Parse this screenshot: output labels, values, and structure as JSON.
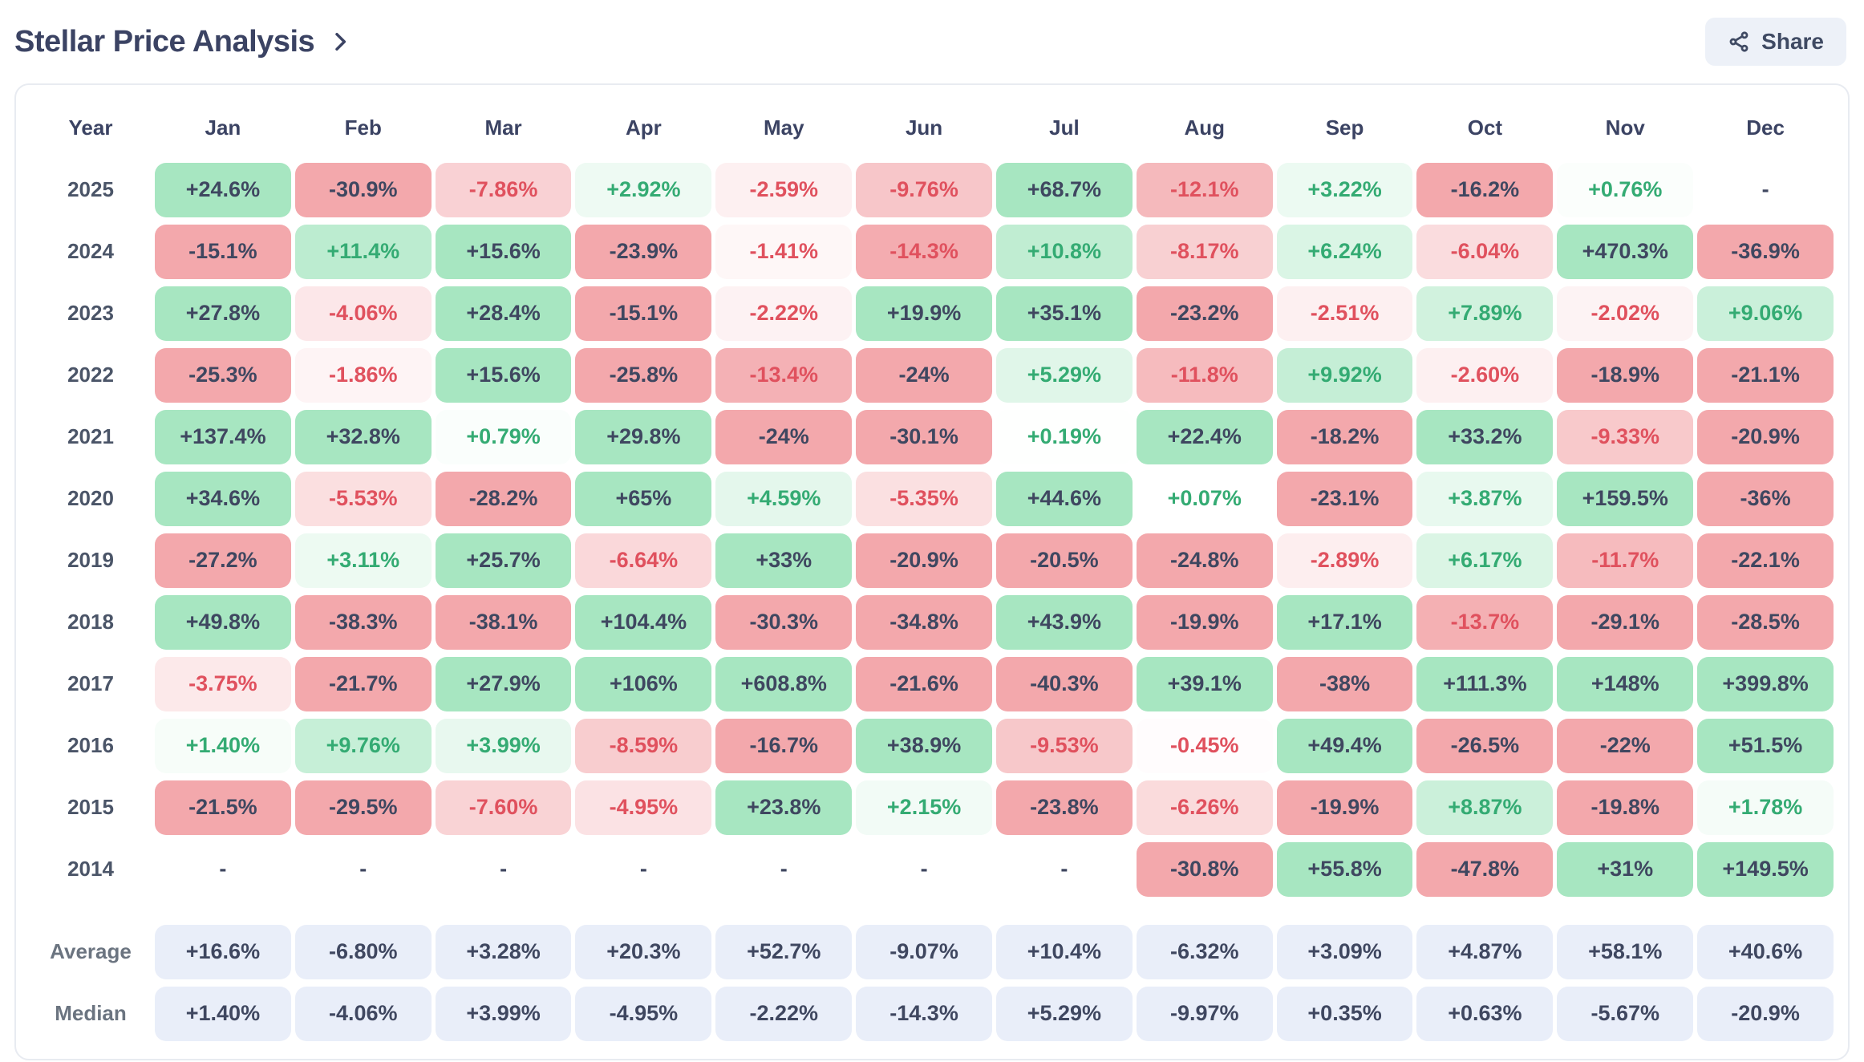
{
  "page": {
    "title": "Stellar Price Analysis"
  },
  "share": {
    "label": "Share"
  },
  "colors": {
    "dark_text": "#3f4760",
    "green_text": "#34ab73",
    "red_text": "#e0515e",
    "green_base": "#a7e6c1",
    "red_base": "#f3a8ac",
    "summary_bg": "#e9eef9",
    "title_text": "#3b4363",
    "button_bg": "#edf1f8"
  },
  "table": {
    "columns": [
      "Year",
      "Jan",
      "Feb",
      "Mar",
      "Apr",
      "May",
      "Jun",
      "Jul",
      "Aug",
      "Sep",
      "Oct",
      "Nov",
      "Dec"
    ],
    "rows": [
      {
        "year": "2025",
        "values": [
          "+24.6%",
          "-30.9%",
          "-7.86%",
          "+2.92%",
          "-2.59%",
          "-9.76%",
          "+68.7%",
          "-12.1%",
          "+3.22%",
          "-16.2%",
          "+0.76%",
          "-"
        ]
      },
      {
        "year": "2024",
        "values": [
          "-15.1%",
          "+11.4%",
          "+15.6%",
          "-23.9%",
          "-1.41%",
          "-14.3%",
          "+10.8%",
          "-8.17%",
          "+6.24%",
          "-6.04%",
          "+470.3%",
          "-36.9%"
        ]
      },
      {
        "year": "2023",
        "values": [
          "+27.8%",
          "-4.06%",
          "+28.4%",
          "-15.1%",
          "-2.22%",
          "+19.9%",
          "+35.1%",
          "-23.2%",
          "-2.51%",
          "+7.89%",
          "-2.02%",
          "+9.06%"
        ]
      },
      {
        "year": "2022",
        "values": [
          "-25.3%",
          "-1.86%",
          "+15.6%",
          "-25.8%",
          "-13.4%",
          "-24%",
          "+5.29%",
          "-11.8%",
          "+9.92%",
          "-2.60%",
          "-18.9%",
          "-21.1%"
        ]
      },
      {
        "year": "2021",
        "values": [
          "+137.4%",
          "+32.8%",
          "+0.79%",
          "+29.8%",
          "-24%",
          "-30.1%",
          "+0.19%",
          "+22.4%",
          "-18.2%",
          "+33.2%",
          "-9.33%",
          "-20.9%"
        ]
      },
      {
        "year": "2020",
        "values": [
          "+34.6%",
          "-5.53%",
          "-28.2%",
          "+65%",
          "+4.59%",
          "-5.35%",
          "+44.6%",
          "+0.07%",
          "-23.1%",
          "+3.87%",
          "+159.5%",
          "-36%"
        ]
      },
      {
        "year": "2019",
        "values": [
          "-27.2%",
          "+3.11%",
          "+25.7%",
          "-6.64%",
          "+33%",
          "-20.9%",
          "-20.5%",
          "-24.8%",
          "-2.89%",
          "+6.17%",
          "-11.7%",
          "-22.1%"
        ]
      },
      {
        "year": "2018",
        "values": [
          "+49.8%",
          "-38.3%",
          "-38.1%",
          "+104.4%",
          "-30.3%",
          "-34.8%",
          "+43.9%",
          "-19.9%",
          "+17.1%",
          "-13.7%",
          "-29.1%",
          "-28.5%"
        ]
      },
      {
        "year": "2017",
        "values": [
          "-3.75%",
          "-21.7%",
          "+27.9%",
          "+106%",
          "+608.8%",
          "-21.6%",
          "-40.3%",
          "+39.1%",
          "-38%",
          "+111.3%",
          "+148%",
          "+399.8%"
        ]
      },
      {
        "year": "2016",
        "values": [
          "+1.40%",
          "+9.76%",
          "+3.99%",
          "-8.59%",
          "-16.7%",
          "+38.9%",
          "-9.53%",
          "-0.45%",
          "+49.4%",
          "-26.5%",
          "-22%",
          "+51.5%"
        ]
      },
      {
        "year": "2015",
        "values": [
          "-21.5%",
          "-29.5%",
          "-7.60%",
          "-4.95%",
          "+23.8%",
          "+2.15%",
          "-23.8%",
          "-6.26%",
          "-19.9%",
          "+8.87%",
          "-19.8%",
          "+1.78%"
        ]
      },
      {
        "year": "2014",
        "values": [
          "-",
          "-",
          "-",
          "-",
          "-",
          "-",
          "-",
          "-30.8%",
          "+55.8%",
          "-47.8%",
          "+31%",
          "+149.5%"
        ]
      }
    ],
    "summary_rows": [
      {
        "label": "Average",
        "values": [
          "+16.6%",
          "-6.80%",
          "+3.28%",
          "+20.3%",
          "+52.7%",
          "-9.07%",
          "+10.4%",
          "-6.32%",
          "+3.09%",
          "+4.87%",
          "+58.1%",
          "+40.6%"
        ]
      },
      {
        "label": "Median",
        "values": [
          "+1.40%",
          "-4.06%",
          "+3.99%",
          "-4.95%",
          "-2.22%",
          "-14.3%",
          "+5.29%",
          "-9.97%",
          "+0.35%",
          "+0.63%",
          "-5.67%",
          "-20.9%"
        ]
      }
    ]
  }
}
